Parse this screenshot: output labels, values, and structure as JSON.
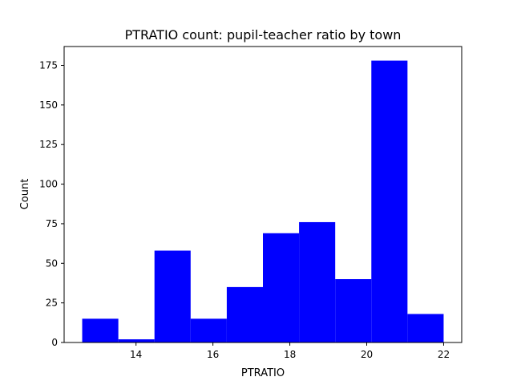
{
  "chart_data": {
    "type": "bar",
    "title": "PTRATIO count: pupil-teacher ratio by town",
    "xlabel": "PTRATIO",
    "ylabel": "Count",
    "bin_edges": [
      12.6,
      13.54,
      14.48,
      15.42,
      16.36,
      17.3,
      18.24,
      19.18,
      20.12,
      21.06,
      22.0
    ],
    "values": [
      15,
      2,
      58,
      15,
      35,
      69,
      76,
      40,
      178,
      18
    ],
    "xlim": [
      12.13,
      22.47
    ],
    "ylim": [
      0,
      186.9
    ],
    "xticks": [
      14,
      16,
      18,
      20,
      22
    ],
    "yticks": [
      0,
      25,
      50,
      75,
      100,
      125,
      150,
      175
    ],
    "bar_color": "#0000ff",
    "grid": false,
    "legend": "none"
  }
}
